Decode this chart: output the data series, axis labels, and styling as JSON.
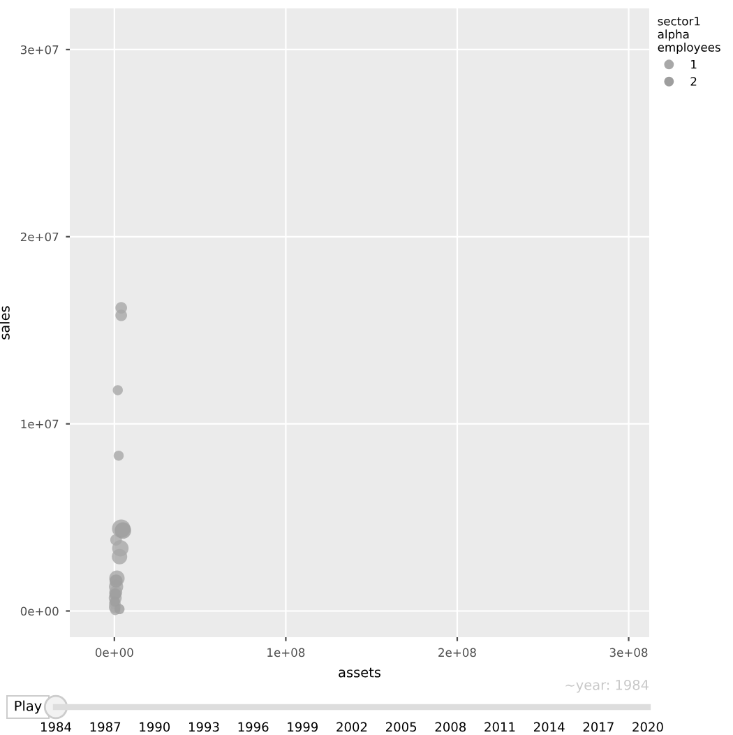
{
  "chart_data": {
    "type": "bubble",
    "xlabel": "assets",
    "ylabel": "sales",
    "legend_title": "sector1\nalpha\nemployees",
    "legend": "top right",
    "grid": true,
    "xlim": [
      -26000000,
      312000000
    ],
    "xticks": [
      {
        "value": 0,
        "label": "0e+00"
      },
      {
        "value": 100000000,
        "label": "1e+08"
      },
      {
        "value": 200000000,
        "label": "2e+08"
      },
      {
        "value": 300000000,
        "label": "3e+08"
      }
    ],
    "ylim": [
      -1400000,
      32200000
    ],
    "yticks": [
      {
        "value": 0,
        "label": "0e+00"
      },
      {
        "value": 10000000,
        "label": "1e+07"
      },
      {
        "value": 20000000,
        "label": "2e+07"
      },
      {
        "value": 30000000,
        "label": "3e+07"
      }
    ],
    "series": [
      {
        "name": "1",
        "color": "#a8a8a8",
        "x": [
          4000000,
          4000000,
          2000000,
          2500000,
          4000000,
          1000000,
          3500000,
          3000000,
          1500000,
          1000000,
          800000,
          500000,
          300000,
          200000,
          500000
        ],
        "values": [
          16200000,
          15800000,
          11800000,
          8300000,
          4400000,
          3800000,
          3350000,
          2900000,
          1750000,
          1300000,
          1000000,
          700000,
          400000,
          200000,
          50000
        ],
        "sizes": [
          0.4,
          0.4,
          0.3,
          0.3,
          1,
          0.4,
          0.8,
          0.7,
          0.7,
          0.6,
          0.5,
          0.5,
          0.4,
          0.4,
          0.3
        ]
      },
      {
        "name": "2",
        "color": "#9e9e9e",
        "x": [
          5000000,
          1000000,
          500000,
          300000,
          3000000
        ],
        "values": [
          4300000,
          1600000,
          900000,
          500000,
          100000
        ],
        "sizes": [
          0.8,
          0.5,
          0.4,
          0.3,
          0.3
        ]
      }
    ],
    "annotations": [
      "Play",
      "~year: 1984",
      "1984",
      "1987",
      "1990",
      "1993",
      "1996",
      "1999",
      "2002",
      "2005",
      "2008",
      "2011",
      "2014",
      "2017",
      "2020"
    ]
  }
}
